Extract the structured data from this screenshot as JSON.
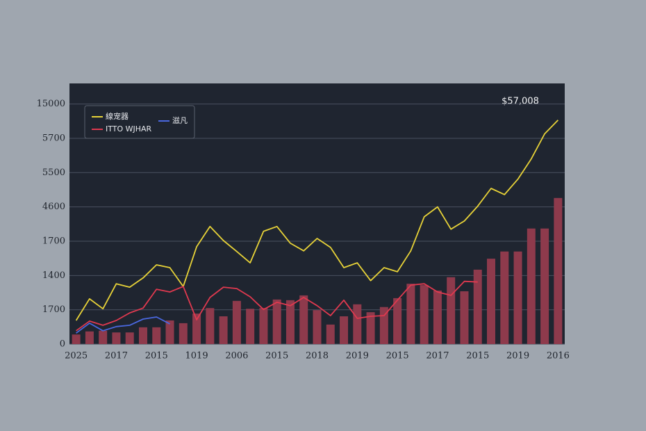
{
  "chart_data": {
    "type": "bar_line",
    "annotation": "$57,008",
    "categories": [
      "2025",
      null,
      null,
      "2017",
      null,
      null,
      "2015",
      null,
      null,
      "1019",
      null,
      null,
      "2006",
      null,
      null,
      "2015",
      null,
      null,
      "2018",
      null,
      null,
      "2019",
      null,
      null,
      "2015",
      null,
      null,
      "2017",
      null,
      null,
      "2015",
      null,
      null,
      "2019",
      null,
      null,
      "2016"
    ],
    "bars": {
      "color": "#8e3a4c",
      "values": [
        0.28,
        0.37,
        0.39,
        0.34,
        0.34,
        0.49,
        0.49,
        0.69,
        0.61,
        0.89,
        1.05,
        0.81,
        1.26,
        1.03,
        1.05,
        1.3,
        1.28,
        1.42,
        0.99,
        0.57,
        0.81,
        1.16,
        0.93,
        1.08,
        1.34,
        1.76,
        1.72,
        1.56,
        1.95,
        1.54,
        2.17,
        2.49,
        2.7,
        2.7,
        3.37,
        3.37,
        4.26
      ]
    },
    "series": [
      {
        "name": "線宠器",
        "color": "#e8d338",
        "values": [
          0.69,
          1.32,
          1.03,
          1.76,
          1.66,
          1.93,
          2.31,
          2.23,
          1.68,
          2.84,
          3.43,
          3.02,
          2.7,
          2.37,
          3.29,
          3.43,
          2.94,
          2.72,
          3.08,
          2.82,
          2.23,
          2.37,
          1.85,
          2.23,
          2.11,
          2.72,
          3.71,
          4.0,
          3.35,
          3.59,
          4.02,
          4.54,
          4.36,
          4.81,
          5.4,
          6.13,
          6.53
        ]
      },
      {
        "name": "ITTO WJHAR",
        "color": "#e0394f",
        "values": [
          0.39,
          0.67,
          0.55,
          0.69,
          0.91,
          1.05,
          1.6,
          1.52,
          1.68,
          0.71,
          1.36,
          1.66,
          1.62,
          1.38,
          1.01,
          1.22,
          1.12,
          1.36,
          1.12,
          0.83,
          1.28,
          0.75,
          0.81,
          0.83,
          1.28,
          1.72,
          1.76,
          1.52,
          1.42,
          1.83,
          1.81,
          null,
          null,
          null,
          null,
          null,
          null
        ]
      },
      {
        "name": "滋凡",
        "color": "#4a68e0",
        "values": [
          0.32,
          0.61,
          0.39,
          0.51,
          0.55,
          0.73,
          0.79,
          0.59,
          null,
          null,
          null,
          null,
          null,
          null,
          null,
          null,
          null,
          null,
          null,
          null,
          null,
          null,
          null,
          null,
          null,
          null,
          null,
          null,
          null,
          null,
          null,
          null,
          null,
          null,
          null,
          null,
          null
        ]
      }
    ],
    "ylim": [
      0,
      7.6
    ],
    "yticks": [
      {
        "value": 0,
        "label": "0"
      },
      {
        "value": 1,
        "label": "1700"
      },
      {
        "value": 2,
        "label": "1400"
      },
      {
        "value": 3,
        "label": "1700"
      },
      {
        "value": 4,
        "label": "4600"
      },
      {
        "value": 5,
        "label": "5500"
      },
      {
        "value": 6,
        "label": "5700"
      },
      {
        "value": 7,
        "label": "15000"
      }
    ],
    "grid": true
  }
}
